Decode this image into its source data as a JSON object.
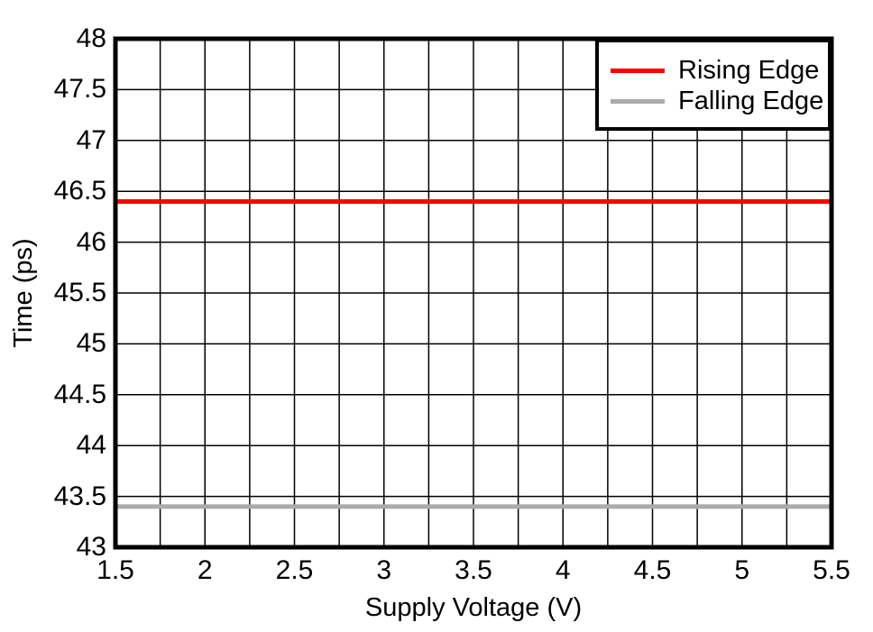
{
  "chart_data": {
    "type": "line",
    "title": "",
    "xlabel": "Supply Voltage (V)",
    "ylabel": "Time (ps)",
    "xlim": [
      1.5,
      5.5
    ],
    "ylim": [
      43,
      48
    ],
    "x_tick_values": [
      1.5,
      2,
      2.5,
      3,
      3.5,
      4,
      4.5,
      5,
      5.5
    ],
    "x_tick_labels": [
      "1.5",
      "2",
      "2.5",
      "3",
      "3.5",
      "4",
      "4.5",
      "5",
      "5.5"
    ],
    "y_tick_values": [
      48,
      47.5,
      47,
      46.5,
      46,
      45.5,
      45,
      44.5,
      44,
      43.5,
      43
    ],
    "y_tick_labels": [
      "48",
      "47.5",
      "47",
      "46.5",
      "46",
      "45.5",
      "45",
      "44.5",
      "44",
      "43.5",
      "43"
    ],
    "x_grid_step": 0.25,
    "y_grid_step": 0.5,
    "grid": true,
    "legend_position": "top-right",
    "x": [
      1.5,
      2,
      2.5,
      3,
      3.5,
      4,
      4.5,
      5,
      5.5
    ],
    "series": [
      {
        "name": "Rising Edge",
        "color": "#ff0000",
        "values": [
          46.4,
          46.4,
          46.4,
          46.4,
          46.4,
          46.4,
          46.4,
          46.4,
          46.4
        ]
      },
      {
        "name": "Falling Edge",
        "color": "#ababab",
        "values": [
          43.4,
          43.4,
          43.4,
          43.4,
          43.4,
          43.4,
          43.4,
          43.4,
          43.4
        ]
      }
    ]
  },
  "colors": {
    "background": "#ffffff",
    "grid": "#000000",
    "axis_border": "#000000",
    "text": "#000000",
    "rising_edge": "#ff0000",
    "falling_edge": "#ababab"
  }
}
